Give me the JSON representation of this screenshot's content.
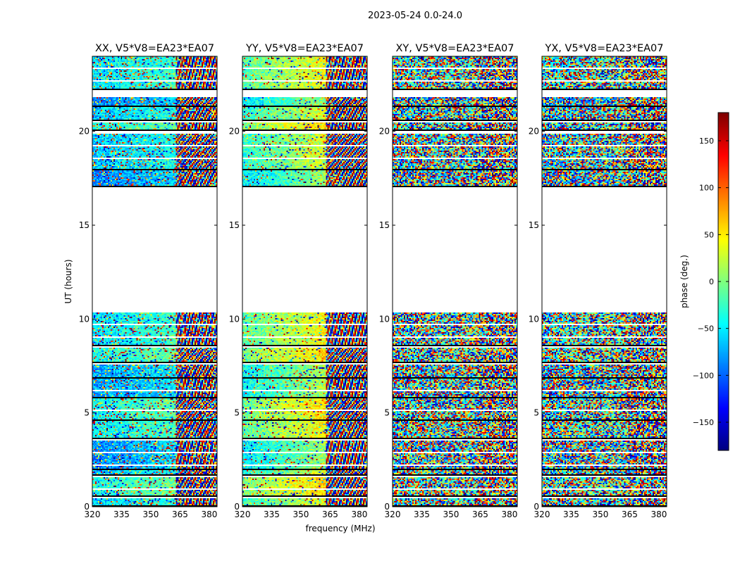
{
  "chart_data": {
    "type": "heatmap",
    "title": "2023-05-24 0.0-24.0",
    "xlabel": "frequency (MHz)",
    "ylabel": "UT (hours)",
    "xlim": [
      320,
      384
    ],
    "ylim": [
      0,
      24
    ],
    "xticks": [
      320,
      335,
      350,
      365,
      380
    ],
    "yticks": [
      0,
      5,
      10,
      15,
      20
    ],
    "panels": [
      {
        "title": "XX, V5*V8=EA23*EA07",
        "pol": "XX",
        "coherence": 0.75
      },
      {
        "title": "YY, V5*V8=EA23*EA07",
        "pol": "YY",
        "coherence": 0.85
      },
      {
        "title": "XY, V5*V8=EA23*EA07",
        "pol": "XY",
        "coherence": 0.15
      },
      {
        "title": "YX, V5*V8=EA23*EA07",
        "pol": "YX",
        "coherence": 0.2
      }
    ],
    "data_segments_hours": [
      [
        0.05,
        0.45
      ],
      [
        0.6,
        1.55
      ],
      [
        1.7,
        2.0
      ],
      [
        2.05,
        3.55
      ],
      [
        3.65,
        4.6
      ],
      [
        4.65,
        5.75
      ],
      [
        5.85,
        6.85
      ],
      [
        6.9,
        7.6
      ],
      [
        7.7,
        8.5
      ],
      [
        8.6,
        10.35
      ],
      [
        17.1,
        17.95
      ],
      [
        18.0,
        19.85
      ],
      [
        20.1,
        20.45
      ],
      [
        20.6,
        21.35
      ],
      [
        21.4,
        21.85
      ],
      [
        22.25,
        24.0
      ]
    ],
    "colorbar": {
      "label": "phase (deg.)",
      "colormap": "jet",
      "range": [
        -180,
        180
      ],
      "ticks": [
        150,
        100,
        50,
        0,
        -50,
        -100,
        -150
      ],
      "tick_labels": [
        "150",
        "100",
        "50",
        "0",
        "−50",
        "−100",
        "−150"
      ]
    }
  }
}
